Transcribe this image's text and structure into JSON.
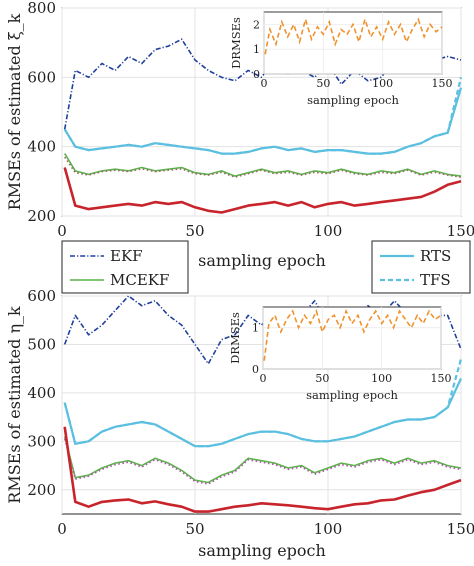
{
  "legend": {
    "items": [
      {
        "label": "EKF",
        "color": "#1f3f9c",
        "style": "dashdot"
      },
      {
        "label": "MCEKF",
        "color": "#5cb34a",
        "style": "solid"
      },
      {
        "label": "RTS",
        "color": "#5bbfe0",
        "style": "solid"
      },
      {
        "label": "TFS",
        "color": "#5bbfe0",
        "style": "dashed"
      }
    ]
  },
  "chart_data": [
    {
      "type": "line",
      "panel": "top",
      "xlabel": "sampling epoch",
      "ylabel": "RMSEs of estimated ξ_k",
      "xlim": [
        0,
        150
      ],
      "ylim": [
        200,
        800
      ],
      "xticks": [
        "0",
        "50",
        "100",
        "150"
      ],
      "yticks": [
        "200",
        "400",
        "600",
        "800"
      ],
      "grid": true,
      "x": [
        1,
        5,
        10,
        15,
        20,
        25,
        30,
        35,
        40,
        45,
        50,
        55,
        60,
        65,
        70,
        75,
        80,
        85,
        90,
        95,
        100,
        105,
        110,
        115,
        120,
        125,
        130,
        135,
        140,
        145,
        150
      ],
      "series": [
        {
          "name": "EKF",
          "color": "#1f3f9c",
          "style": "dashdot",
          "values": [
            450,
            620,
            600,
            640,
            620,
            660,
            640,
            680,
            690,
            710,
            650,
            620,
            600,
            590,
            620,
            600,
            650,
            610,
            620,
            600,
            640,
            580,
            620,
            590,
            600,
            650,
            630,
            620,
            650,
            660,
            650
          ]
        },
        {
          "name": "RTS",
          "color": "#5bbfe0",
          "style": "solid",
          "values": [
            450,
            400,
            390,
            395,
            400,
            405,
            400,
            410,
            405,
            400,
            395,
            390,
            380,
            380,
            385,
            395,
            400,
            390,
            395,
            385,
            390,
            390,
            385,
            380,
            380,
            385,
            400,
            410,
            430,
            440,
            570
          ]
        },
        {
          "name": "TFS",
          "color": "#5bbfe0",
          "style": "dashed",
          "values": [
            450,
            400,
            390,
            395,
            400,
            405,
            400,
            410,
            405,
            400,
            395,
            390,
            380,
            380,
            385,
            395,
            400,
            390,
            395,
            385,
            390,
            390,
            385,
            380,
            380,
            385,
            400,
            410,
            430,
            440,
            600
          ]
        },
        {
          "name": "MCEKF",
          "color": "#5cb34a",
          "style": "solid",
          "values": [
            380,
            330,
            320,
            330,
            335,
            330,
            340,
            330,
            335,
            340,
            325,
            320,
            330,
            315,
            325,
            335,
            325,
            330,
            320,
            330,
            325,
            335,
            325,
            320,
            330,
            325,
            335,
            320,
            330,
            320,
            315
          ]
        },
        {
          "name": "",
          "color": "#9b6b6b",
          "style": "dotted",
          "values": [
            370,
            325,
            318,
            328,
            332,
            328,
            336,
            328,
            332,
            336,
            322,
            318,
            326,
            312,
            322,
            332,
            322,
            326,
            318,
            326,
            322,
            332,
            322,
            318,
            326,
            322,
            332,
            318,
            326,
            318,
            312
          ]
        },
        {
          "name": "",
          "color": "#c8242c",
          "style": "solid",
          "values": [
            340,
            230,
            220,
            225,
            230,
            235,
            230,
            240,
            235,
            240,
            225,
            215,
            210,
            220,
            230,
            235,
            240,
            230,
            240,
            225,
            235,
            240,
            230,
            235,
            240,
            245,
            250,
            255,
            270,
            290,
            300
          ]
        }
      ],
      "inset": {
        "xlabel": "sampling epoch",
        "ylabel": "DRMSEs",
        "xlim": [
          0,
          150
        ],
        "ylim": [
          0,
          2.5
        ],
        "xticks": [
          "0",
          "50",
          "100",
          "150"
        ],
        "yticks": [
          "0",
          "1",
          "2"
        ],
        "color": "#f0922d",
        "style": "dashed",
        "x": [
          1,
          5,
          10,
          15,
          20,
          25,
          30,
          35,
          40,
          45,
          50,
          55,
          60,
          65,
          70,
          75,
          80,
          85,
          90,
          95,
          100,
          105,
          110,
          115,
          120,
          125,
          130,
          135,
          140,
          145,
          150
        ],
        "values": [
          0.8,
          1.8,
          1.2,
          2.1,
          1.5,
          2.0,
          1.3,
          2.2,
          1.4,
          1.9,
          1.6,
          2.1,
          1.2,
          1.8,
          1.6,
          2.0,
          1.3,
          2.2,
          1.5,
          1.9,
          1.4,
          2.1,
          1.6,
          2.0,
          1.3,
          1.8,
          2.2,
          1.5,
          2.0,
          1.7,
          1.9
        ]
      }
    },
    {
      "type": "line",
      "panel": "bottom",
      "xlabel": "sampling epoch",
      "ylabel": "RMSEs of estimated η_k",
      "xlim": [
        0,
        150
      ],
      "ylim": [
        150,
        600
      ],
      "xticks": [
        "0",
        "50",
        "100",
        "150"
      ],
      "yticks": [
        "200",
        "300",
        "400",
        "500",
        "600"
      ],
      "grid": true,
      "x": [
        1,
        5,
        10,
        15,
        20,
        25,
        30,
        35,
        40,
        45,
        50,
        55,
        60,
        65,
        70,
        75,
        80,
        85,
        90,
        95,
        100,
        105,
        110,
        115,
        120,
        125,
        130,
        135,
        140,
        145,
        150
      ],
      "series": [
        {
          "name": "EKF",
          "color": "#1f3f9c",
          "style": "dashdot",
          "values": [
            500,
            560,
            520,
            540,
            570,
            600,
            580,
            590,
            560,
            540,
            500,
            460,
            510,
            520,
            560,
            540,
            570,
            540,
            560,
            590,
            540,
            560,
            550,
            580,
            560,
            590,
            560,
            540,
            560,
            560,
            490
          ]
        },
        {
          "name": "RTS",
          "color": "#5bbfe0",
          "style": "solid",
          "values": [
            380,
            295,
            300,
            320,
            330,
            335,
            340,
            335,
            320,
            305,
            290,
            290,
            295,
            305,
            315,
            320,
            320,
            315,
            305,
            300,
            300,
            305,
            310,
            320,
            330,
            340,
            345,
            345,
            350,
            370,
            430
          ]
        },
        {
          "name": "TFS",
          "color": "#5bbfe0",
          "style": "dashed",
          "values": [
            380,
            295,
            300,
            320,
            330,
            335,
            340,
            335,
            320,
            305,
            290,
            290,
            295,
            305,
            315,
            320,
            320,
            315,
            305,
            300,
            300,
            305,
            310,
            320,
            330,
            340,
            345,
            345,
            350,
            370,
            470
          ]
        },
        {
          "name": "MCEKF",
          "color": "#5cb34a",
          "style": "solid",
          "values": [
            310,
            225,
            230,
            245,
            255,
            260,
            250,
            265,
            255,
            240,
            220,
            215,
            230,
            240,
            265,
            260,
            255,
            245,
            250,
            235,
            245,
            255,
            250,
            260,
            265,
            255,
            265,
            255,
            260,
            250,
            245
          ]
        },
        {
          "name": "",
          "color": "#b055b0",
          "style": "dotted",
          "values": [
            305,
            222,
            228,
            242,
            252,
            257,
            247,
            262,
            252,
            237,
            217,
            212,
            227,
            237,
            262,
            257,
            252,
            242,
            247,
            232,
            242,
            252,
            247,
            257,
            262,
            252,
            262,
            252,
            257,
            247,
            242
          ]
        },
        {
          "name": "",
          "color": "#c8242c",
          "style": "solid",
          "values": [
            330,
            175,
            165,
            175,
            178,
            180,
            172,
            176,
            170,
            165,
            155,
            155,
            160,
            165,
            168,
            172,
            170,
            168,
            165,
            162,
            160,
            165,
            170,
            172,
            178,
            180,
            188,
            195,
            200,
            210,
            220
          ]
        }
      ],
      "inset": {
        "xlabel": "sampling epoch",
        "ylabel": "DRMSEs",
        "xlim": [
          0,
          150
        ],
        "ylim": [
          0,
          1.5
        ],
        "xticks": [
          "0",
          "50",
          "100",
          "150"
        ],
        "yticks": [
          "0",
          "1"
        ],
        "color": "#f0922d",
        "style": "dashed",
        "x": [
          1,
          5,
          10,
          15,
          20,
          25,
          30,
          35,
          40,
          45,
          50,
          55,
          60,
          65,
          70,
          75,
          80,
          85,
          90,
          95,
          100,
          105,
          110,
          115,
          120,
          125,
          130,
          135,
          140,
          145,
          150
        ],
        "values": [
          0.2,
          1.1,
          1.3,
          0.9,
          1.2,
          1.4,
          1.0,
          1.3,
          1.1,
          1.4,
          0.9,
          1.2,
          1.3,
          1.0,
          1.4,
          1.1,
          1.3,
          0.9,
          1.2,
          1.4,
          1.1,
          1.3,
          1.0,
          1.4,
          1.2,
          1.0,
          1.3,
          1.1,
          1.4,
          1.2,
          1.3
        ]
      }
    }
  ]
}
